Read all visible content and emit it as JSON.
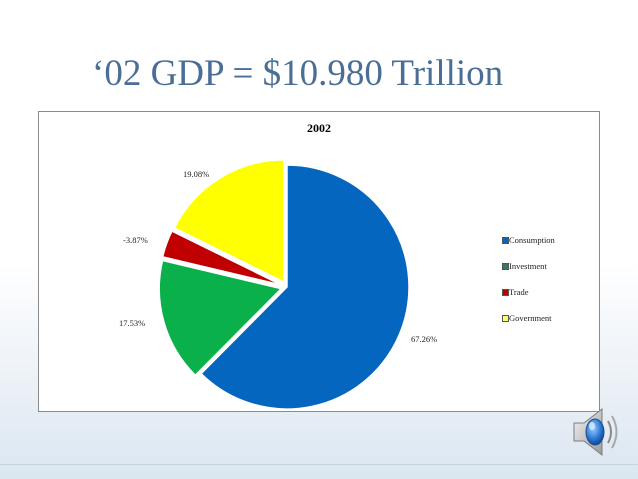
{
  "slide": {
    "title": "‘02 GDP = $10.980 Trillion"
  },
  "colors": {
    "consumption": "#0566c0",
    "investment": "#0ab04a",
    "trade": "#c00000",
    "government": "#ffff00"
  },
  "chart_data": {
    "type": "pie",
    "title": "2002",
    "legend_position": "right",
    "slices": [
      {
        "name": "Consumption",
        "value": 67.26,
        "label": "67.26%",
        "color": "#0566c0"
      },
      {
        "name": "Investment",
        "value": 17.53,
        "label": "17.53%",
        "color": "#0ab04a"
      },
      {
        "name": "Trade",
        "value": 3.87,
        "label": "-3.87%",
        "color": "#c00000"
      },
      {
        "name": "Government",
        "value": 19.08,
        "label": "19.08%",
        "color": "#ffff00"
      }
    ],
    "legend": [
      {
        "name": "Consumption",
        "color": "#0566c0"
      },
      {
        "name": "Investment",
        "color": "#2f7a6a"
      },
      {
        "name": "Trade",
        "color": "#c00000"
      },
      {
        "name": "Government",
        "color": "#ffff66"
      }
    ]
  },
  "icons": {
    "speaker": "speaker-icon"
  }
}
